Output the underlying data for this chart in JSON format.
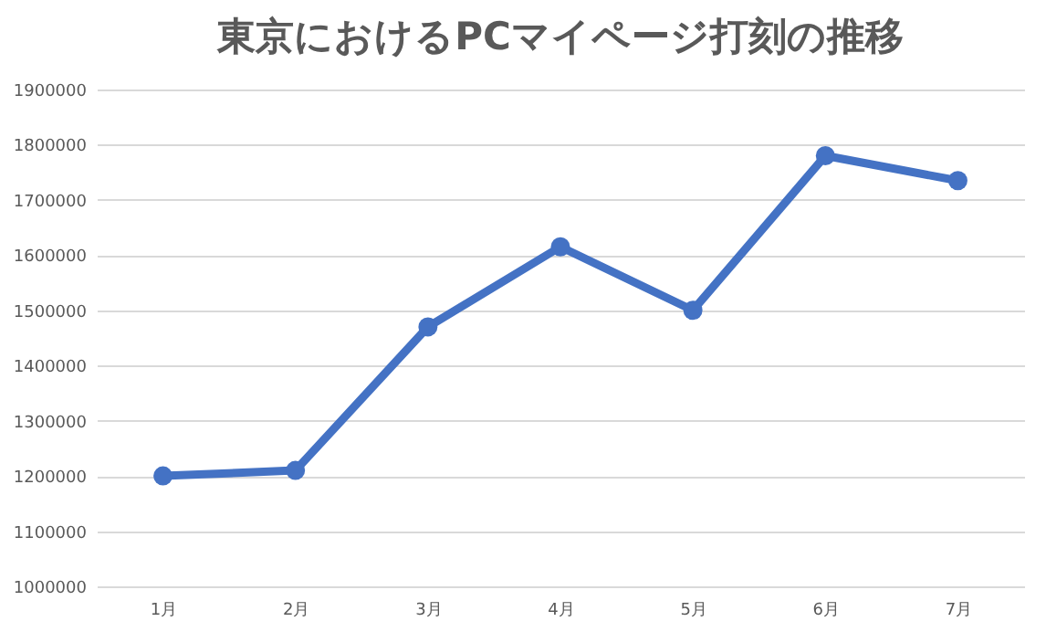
{
  "chart_data": {
    "type": "line",
    "title": "東京におけるPCマイページ打刻の推移",
    "categories": [
      "1月",
      "2月",
      "3月",
      "4月",
      "5月",
      "6月",
      "7月"
    ],
    "series": [
      {
        "color": "#4472c4",
        "values": [
          1200000,
          1210000,
          1470000,
          1615000,
          1500000,
          1780000,
          1735000
        ]
      }
    ],
    "ylim": [
      1000000,
      1900000
    ],
    "yticks": [
      1000000,
      1100000,
      1200000,
      1300000,
      1400000,
      1500000,
      1600000,
      1700000,
      1800000,
      1900000
    ],
    "grid": "y",
    "marker": "circle",
    "legend": false
  }
}
